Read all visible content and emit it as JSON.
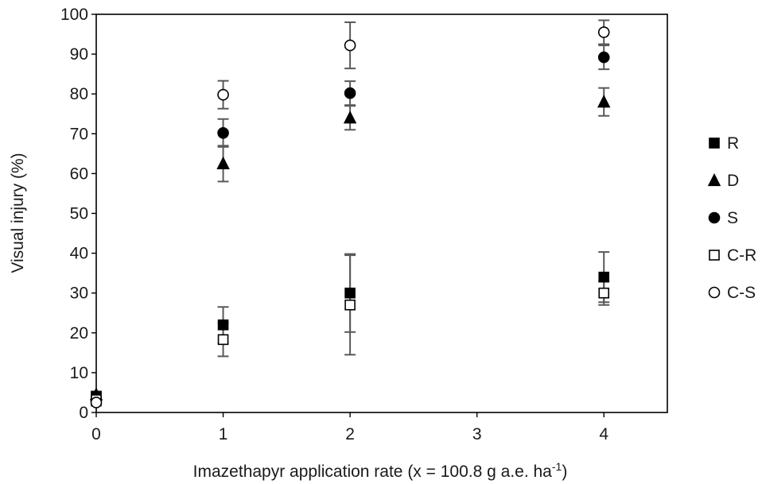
{
  "chart_data": {
    "type": "scatter",
    "xlabel": "Imazethapyr application rate (x = 100.8 g a.e. ha",
    "xlabel_sup": "-1",
    "xlabel_end": ")",
    "ylabel": "Visual injury (%)",
    "xlim": [
      0,
      4.5
    ],
    "ylim": [
      0,
      100
    ],
    "x_ticks": [
      0,
      1,
      2,
      3,
      4
    ],
    "y_ticks": [
      0,
      10,
      20,
      30,
      40,
      50,
      60,
      70,
      80,
      90,
      100
    ],
    "grid": false,
    "legend_position": "right",
    "series": [
      {
        "name": "R",
        "marker": "square-filled",
        "x": [
          0,
          1,
          2,
          4
        ],
        "y": [
          4,
          22,
          30,
          34
        ],
        "err": [
          0.8,
          4.5,
          9.8,
          6.3
        ]
      },
      {
        "name": "D",
        "marker": "triangle-filled",
        "x": [
          0,
          1,
          2,
          4
        ],
        "y": [
          4.5,
          62.5,
          74,
          78
        ],
        "err": [
          0.8,
          4.5,
          3,
          3.5
        ]
      },
      {
        "name": "S",
        "marker": "circle-filled",
        "x": [
          0,
          1,
          2,
          4
        ],
        "y": [
          3,
          70.2,
          80.2,
          89.2
        ],
        "err": [
          0.8,
          3.5,
          3,
          3
        ]
      },
      {
        "name": "C-R",
        "marker": "square-open",
        "x": [
          0,
          1,
          2,
          4
        ],
        "y": [
          3.2,
          18.3,
          27,
          30
        ],
        "err": [
          0.8,
          4.2,
          12.5,
          3
        ]
      },
      {
        "name": "C-S",
        "marker": "circle-open",
        "x": [
          0,
          1,
          2,
          4
        ],
        "y": [
          2.5,
          79.8,
          92.2,
          95.5
        ],
        "err": [
          0.8,
          3.5,
          5.8,
          3
        ]
      }
    ]
  }
}
